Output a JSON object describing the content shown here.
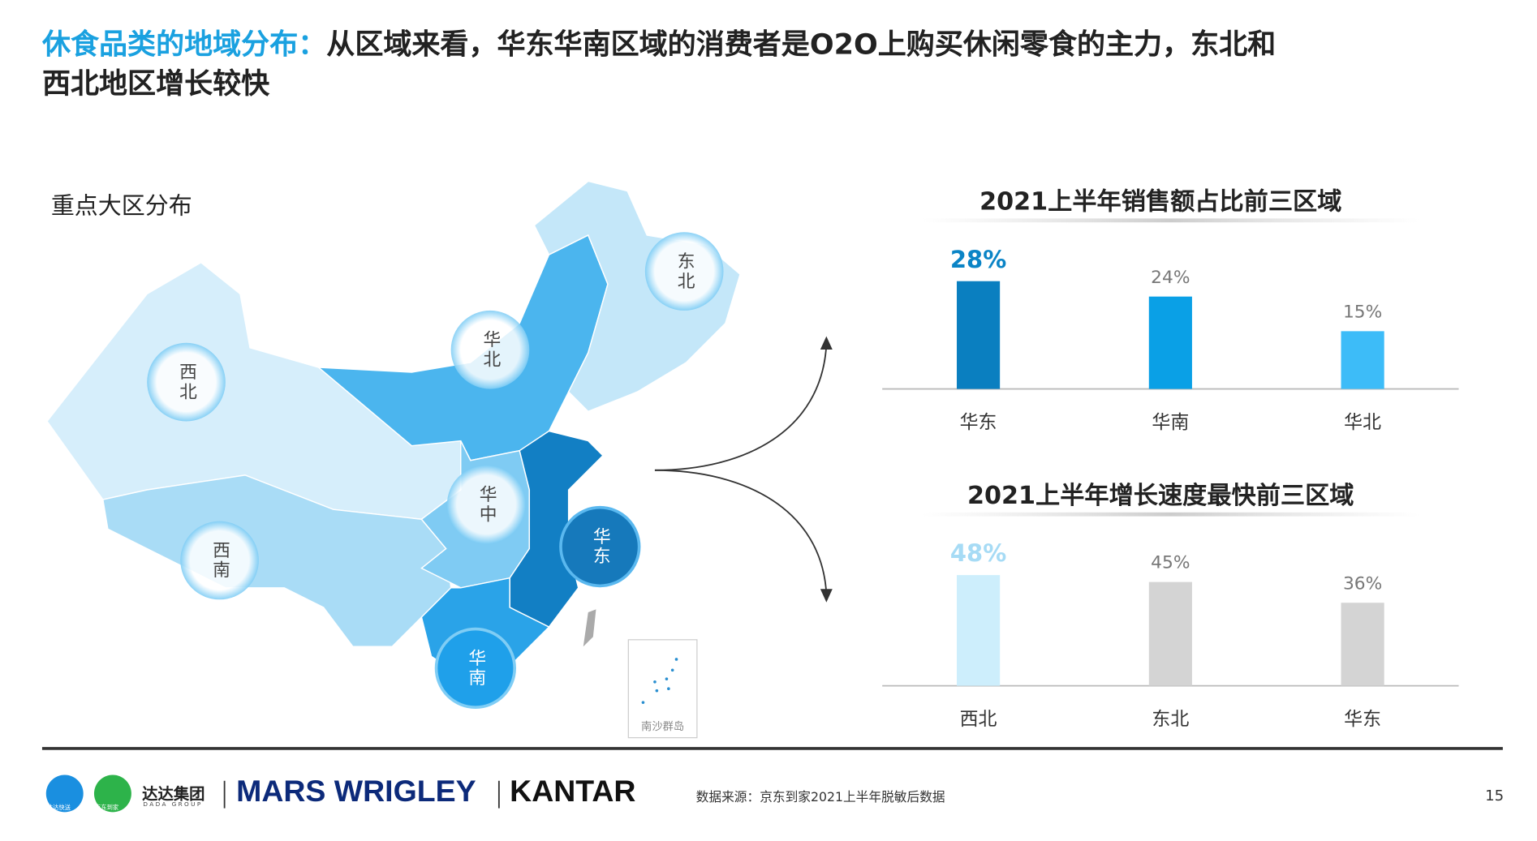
{
  "header": {
    "highlight": "休食品类的地域分布：",
    "line1": "从区域来看，华东华南区域的消费者是O2O上购买休闲零食的主力，东北和",
    "line2": "西北地区增长较快"
  },
  "map": {
    "title": "重点大区分布",
    "regions": [
      "西北",
      "东北",
      "华北",
      "华中",
      "华东",
      "华南",
      "西南"
    ],
    "inset": "南沙群岛"
  },
  "chart_data": [
    {
      "type": "bar",
      "title": "2021上半年销售额占比前三区域",
      "categories": [
        "华东",
        "华南",
        "华北"
      ],
      "values": [
        28,
        24,
        15
      ],
      "value_labels": [
        "28%",
        "24%",
        "15%"
      ],
      "colors": [
        "#0a7fc0",
        "#0aa0e6",
        "#3dbcf8"
      ],
      "value_label_colors": [
        "#0a84c6",
        "#777777",
        "#777777"
      ]
    },
    {
      "type": "bar",
      "title": "2021上半年增长速度最快前三区域",
      "categories": [
        "西北",
        "东北",
        "华东"
      ],
      "values": [
        48,
        45,
        36
      ],
      "value_labels": [
        "48%",
        "45%",
        "36%"
      ],
      "colors": [
        "#cdeefc",
        "#d4d4d4",
        "#d4d4d4"
      ],
      "value_label_colors": [
        "#a6dbf5",
        "#777777",
        "#777777"
      ]
    }
  ],
  "footer": {
    "logo1": "达达快送",
    "logo2": "京东到家",
    "logo_text": "达达集团",
    "logo_subtext": "DADA GROUP",
    "brand1": "MARS WRIGLEY",
    "brand2": "KANTAR",
    "source": "数据来源：京东到家2021上半年脱敏后数据",
    "page": "15"
  }
}
